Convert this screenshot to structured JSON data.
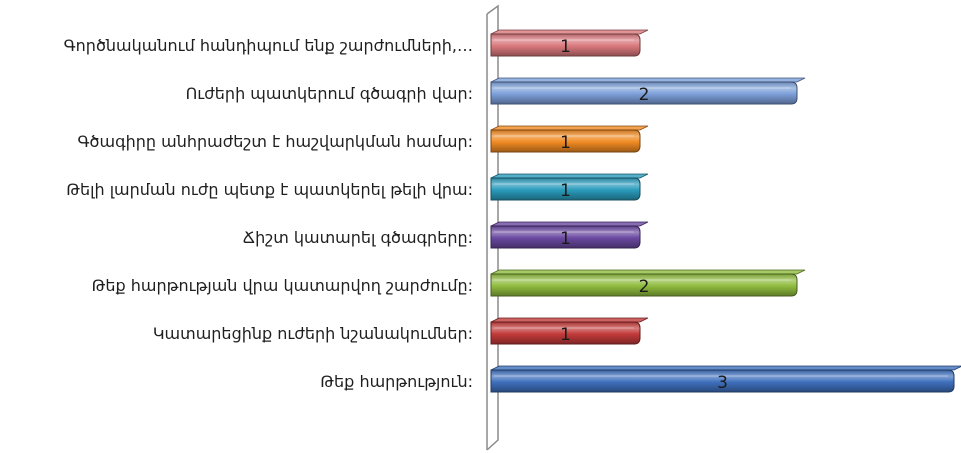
{
  "chart_data": {
    "type": "bar",
    "orientation": "horizontal",
    "style": "3d-cylinder",
    "categories": [
      "Գործնականում հանդիպում ենք շարժումների,…",
      "Ուժերի պատկերում գծագրի վար:",
      "Գծագիրը անհրաժեշտ է հաշվարկման համար:",
      "Թելի լարման ուժը պետք է պատկերել թելի վրա:",
      "Ճիշտ կատարել գծագրերը:",
      "Թեք հարթության վրա կատարվող շարժումը:",
      "Կատարեցինք ուժերի նշանակումներ:",
      "Թեք հարթություն:"
    ],
    "values": [
      1,
      2,
      1,
      1,
      1,
      2,
      1,
      3
    ],
    "colors": [
      "#d9787c",
      "#7c9fd9",
      "#f08a22",
      "#2a9bbb",
      "#6a48a0",
      "#8fbb3e",
      "#c23a3a",
      "#3f70bd"
    ],
    "xlim": [
      0,
      3
    ],
    "grid": false,
    "legend": "none",
    "data_labels": true
  }
}
